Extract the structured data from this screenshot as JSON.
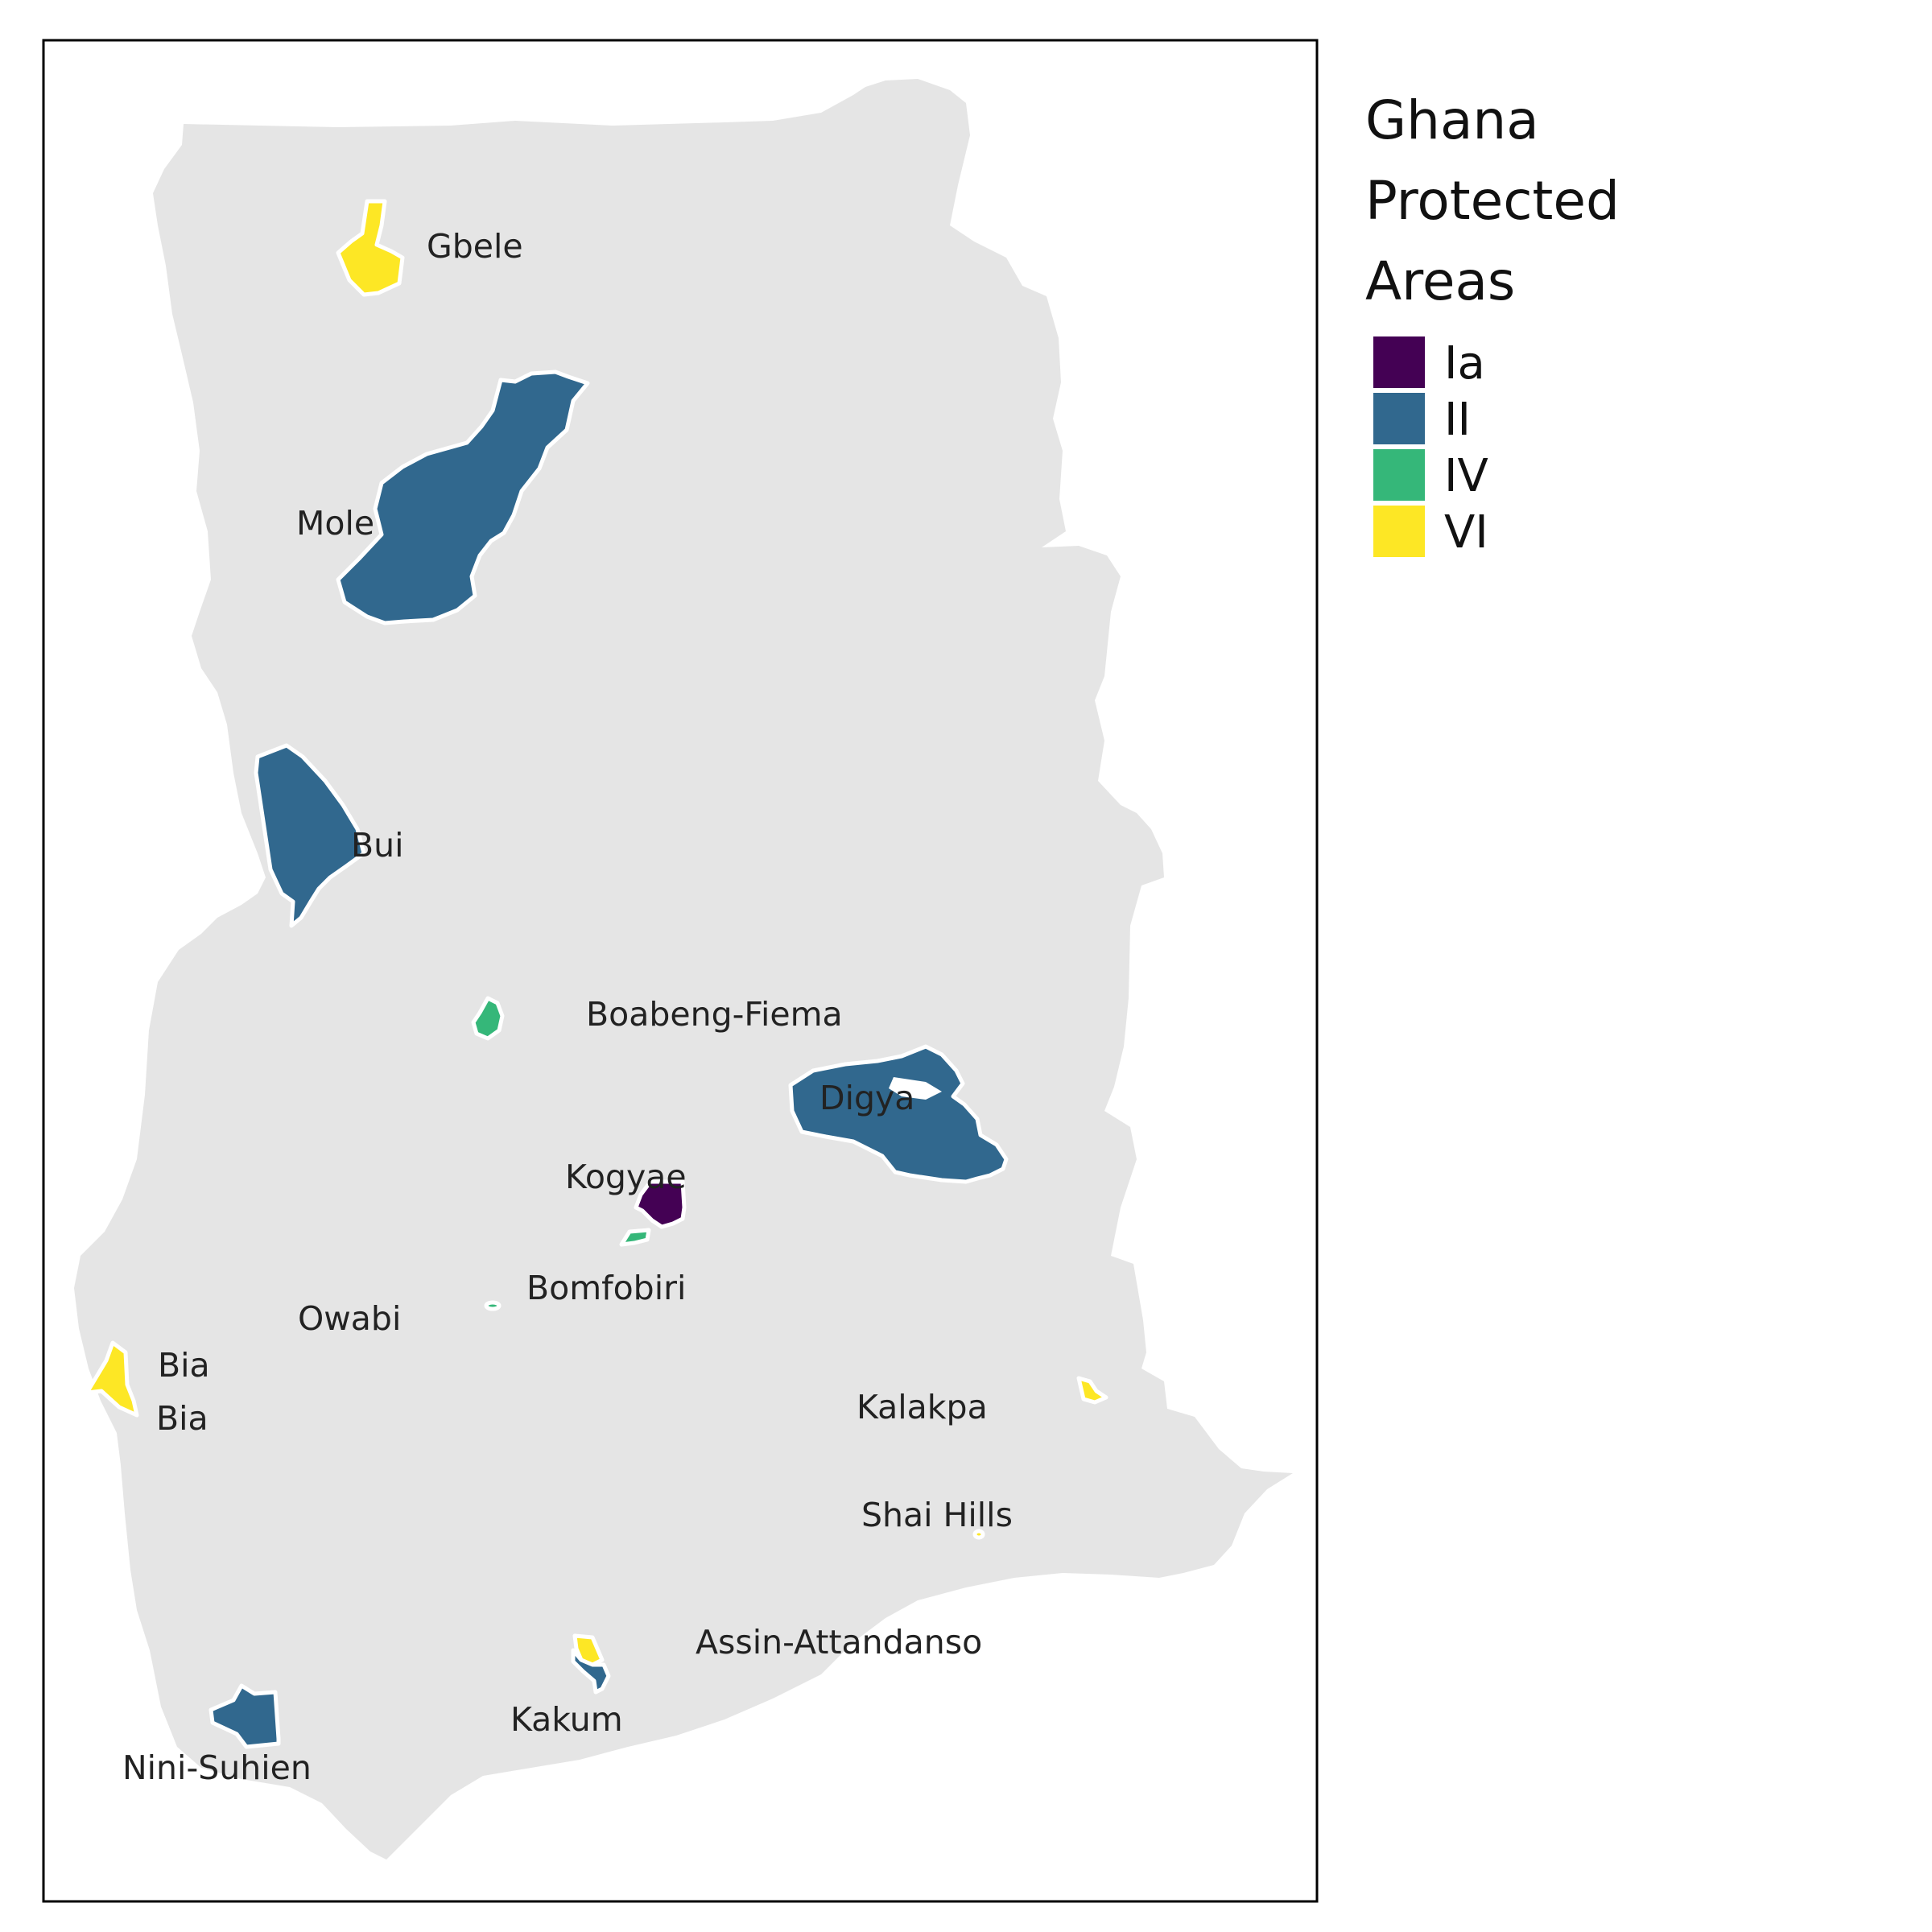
{
  "legend": {
    "title_lines": [
      "Ghana",
      "Protected",
      "Areas"
    ],
    "items": [
      {
        "label": "Ia",
        "color": "#440154"
      },
      {
        "label": "II",
        "color": "#31688e"
      },
      {
        "label": "IV",
        "color": "#35b779"
      },
      {
        "label": "VI",
        "color": "#fde725"
      }
    ]
  },
  "colors": {
    "land": "#e5e5e5",
    "area_outline": "#ffffff",
    "frame": "#000000"
  },
  "areas": [
    {
      "id": "gbele",
      "label": "Gbele",
      "category": "VI"
    },
    {
      "id": "mole",
      "label": "Mole",
      "category": "II"
    },
    {
      "id": "bui",
      "label": "Bui",
      "category": "II"
    },
    {
      "id": "boabeng-fiema",
      "label": "Boabeng-Fiema",
      "category": "IV"
    },
    {
      "id": "digya",
      "label": "Digya",
      "category": "II"
    },
    {
      "id": "kogyae",
      "label": "Kogyae",
      "category": "Ia"
    },
    {
      "id": "bomfobiri",
      "label": "Bomfobiri",
      "category": "IV"
    },
    {
      "id": "owabi",
      "label": "Owabi",
      "category": "IV"
    },
    {
      "id": "bia-1",
      "label": "Bia",
      "category": "VI"
    },
    {
      "id": "bia-2",
      "label": "Bia",
      "category": "VI"
    },
    {
      "id": "kalakpa",
      "label": "Kalakpa",
      "category": "VI"
    },
    {
      "id": "shai-hills",
      "label": "Shai Hills",
      "category": "VI"
    },
    {
      "id": "assin-attandanso",
      "label": "Assin-Attandanso",
      "category": "VI"
    },
    {
      "id": "kakum",
      "label": "Kakum",
      "category": "II"
    },
    {
      "id": "nini-suhien",
      "label": "Nini-Suhien",
      "category": "II"
    }
  ]
}
